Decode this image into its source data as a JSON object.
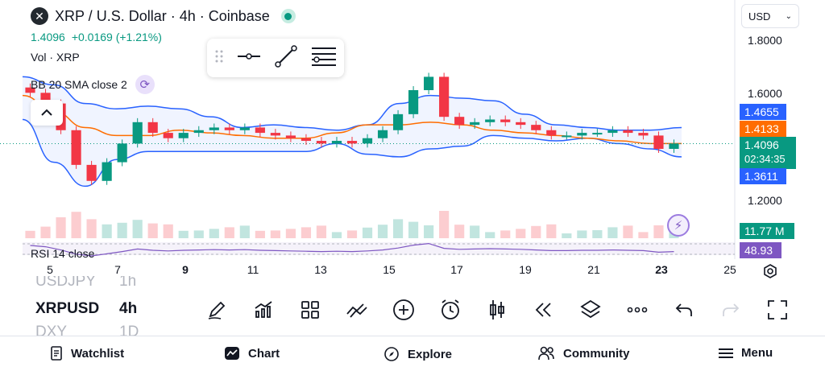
{
  "header": {
    "symbol_title": "XRP / U.S. Dollar · 4h · Coinbase",
    "last_price": "1.4096",
    "change": "+0.0169 (+1.21%)"
  },
  "legend": {
    "volume": "Vol · XRP",
    "bollinger": "BB 20 SMA close 2"
  },
  "currency": {
    "selected": "USD"
  },
  "price_axis": {
    "labels": [
      "1.8000",
      "1.6000",
      "1.2000"
    ],
    "bb_upper": "1.4655",
    "bb_basis": "1.4133",
    "current": "1.4096",
    "countdown": "02:34:35",
    "bb_lower": "1.3611",
    "volume": "11.77 M",
    "rsi": "48.93"
  },
  "rsi_label": "RSI 14 close",
  "time_axis": [
    {
      "label": "5",
      "bold": false
    },
    {
      "label": "7",
      "bold": false
    },
    {
      "label": "9",
      "bold": true
    },
    {
      "label": "11",
      "bold": false
    },
    {
      "label": "13",
      "bold": false
    },
    {
      "label": "15",
      "bold": false
    },
    {
      "label": "17",
      "bold": false
    },
    {
      "label": "19",
      "bold": false
    },
    {
      "label": "21",
      "bold": false
    },
    {
      "label": "23",
      "bold": true
    },
    {
      "label": "25",
      "bold": false
    }
  ],
  "symbol_picker": {
    "prev": {
      "symbol": "USDJPY",
      "interval": "1h"
    },
    "current": {
      "symbol": "XRPUSD",
      "interval": "4h"
    },
    "next": {
      "symbol": "DXY",
      "interval": "1D"
    }
  },
  "bottom_nav": {
    "watchlist": "Watchlist",
    "chart": "Chart",
    "explore": "Explore",
    "community": "Community",
    "menu": "Menu"
  },
  "colors": {
    "up": "#089981",
    "down": "#f23645",
    "bb_band": "#2962ff",
    "bb_basis": "#ff6d00",
    "rsi": "#7e57c2"
  },
  "chart_data": {
    "type": "candlestick",
    "close_points": [
      [
        "5",
        1.6
      ],
      [
        "5",
        1.56
      ],
      [
        "6",
        1.46
      ],
      [
        "6",
        1.33
      ],
      [
        "6",
        1.27
      ],
      [
        "7",
        1.34
      ],
      [
        "7",
        1.41
      ],
      [
        "7",
        1.49
      ],
      [
        "8",
        1.45
      ],
      [
        "8",
        1.43
      ],
      [
        "8",
        1.45
      ],
      [
        "9",
        1.46
      ],
      [
        "9",
        1.47
      ],
      [
        "9",
        1.46
      ],
      [
        "10",
        1.47
      ],
      [
        "10",
        1.45
      ],
      [
        "11",
        1.44
      ],
      [
        "11",
        1.43
      ],
      [
        "12",
        1.42
      ],
      [
        "12",
        1.41
      ],
      [
        "13",
        1.42
      ],
      [
        "13",
        1.41
      ],
      [
        "14",
        1.43
      ],
      [
        "14",
        1.46
      ],
      [
        "15",
        1.52
      ],
      [
        "15",
        1.61
      ],
      [
        "15",
        1.66
      ],
      [
        "16",
        1.51
      ],
      [
        "16",
        1.48
      ],
      [
        "17",
        1.49
      ],
      [
        "17",
        1.5
      ],
      [
        "18",
        1.49
      ],
      [
        "18",
        1.48
      ],
      [
        "19",
        1.46
      ],
      [
        "19",
        1.44
      ],
      [
        "20",
        1.44
      ],
      [
        "20",
        1.45
      ],
      [
        "21",
        1.45
      ],
      [
        "21",
        1.46
      ],
      [
        "22",
        1.45
      ],
      [
        "22",
        1.44
      ],
      [
        "23",
        1.39
      ],
      [
        "23",
        1.41
      ]
    ],
    "bollinger_upper": [
      1.66,
      1.63,
      1.56,
      1.54,
      1.55,
      1.54,
      1.51,
      1.47,
      1.48,
      1.47,
      1.46,
      1.48,
      1.56,
      1.59,
      1.58,
      1.57,
      1.52,
      1.48,
      1.47,
      1.46,
      1.46,
      1.47
    ],
    "bollinger_basis": [
      1.59,
      1.53,
      1.47,
      1.44,
      1.44,
      1.46,
      1.45,
      1.44,
      1.43,
      1.43,
      1.45,
      1.48,
      1.48,
      1.49,
      1.48,
      1.46,
      1.45,
      1.44,
      1.43,
      1.42,
      1.41,
      1.41
    ],
    "bollinger_lower": [
      1.5,
      1.34,
      1.25,
      1.35,
      1.38,
      1.38,
      1.38,
      1.38,
      1.38,
      1.38,
      1.41,
      1.37,
      1.36,
      1.39,
      1.4,
      1.44,
      1.43,
      1.42,
      1.43,
      1.41,
      1.39,
      1.36
    ],
    "ylim": [
      1.12,
      1.86
    ]
  }
}
